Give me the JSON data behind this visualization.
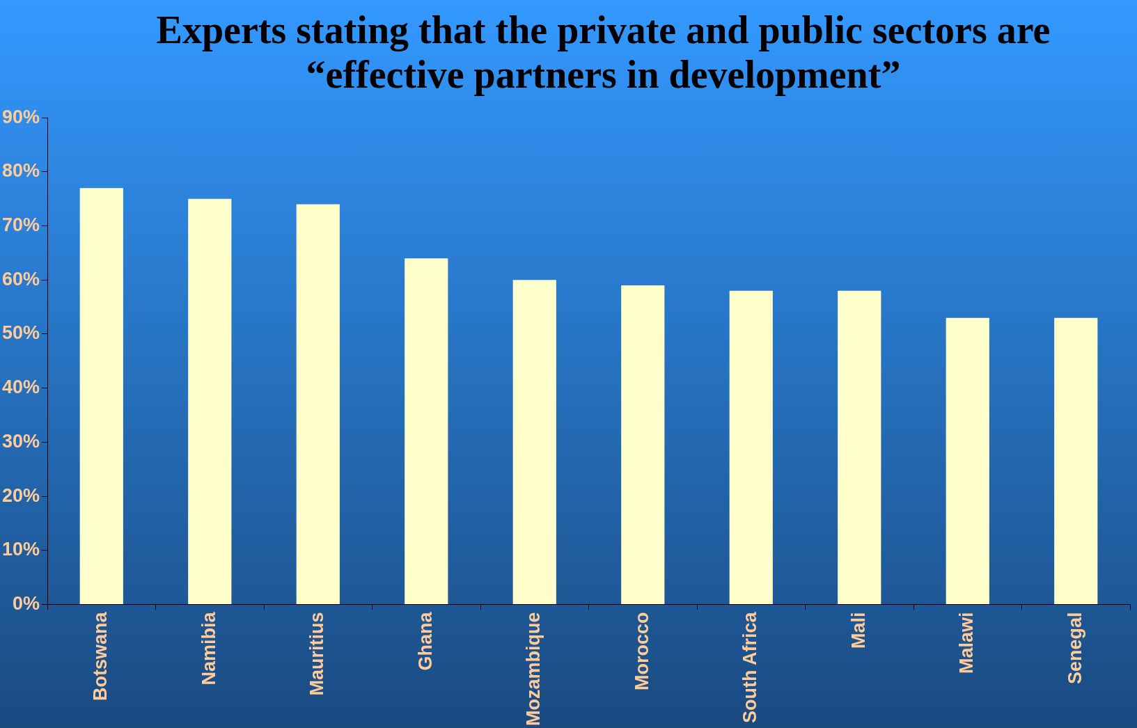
{
  "chart_data": {
    "type": "bar",
    "title": "Experts stating that the private and public sectors are “effective partners in development”",
    "categories": [
      "Botswana",
      "Namibia",
      "Mauritius",
      "Ghana",
      "Mozambique",
      "Morocco",
      "South Africa",
      "Mali",
      "Malawi",
      "Senegal"
    ],
    "values": [
      77,
      75,
      74,
      64,
      60,
      59,
      58,
      58,
      53,
      53
    ],
    "color": "#ffffcc",
    "ylim": [
      0,
      90
    ],
    "yticks": [
      {
        "value": 0,
        "label": "0%"
      },
      {
        "value": 10,
        "label": "10%"
      },
      {
        "value": 20,
        "label": "20%"
      },
      {
        "value": 30,
        "label": "30%"
      },
      {
        "value": 40,
        "label": "40%"
      },
      {
        "value": 50,
        "label": "50%"
      },
      {
        "value": 60,
        "label": "60%"
      },
      {
        "value": 70,
        "label": "70%"
      },
      {
        "value": 80,
        "label": "80%"
      },
      {
        "value": 90,
        "label": "90%"
      }
    ]
  }
}
